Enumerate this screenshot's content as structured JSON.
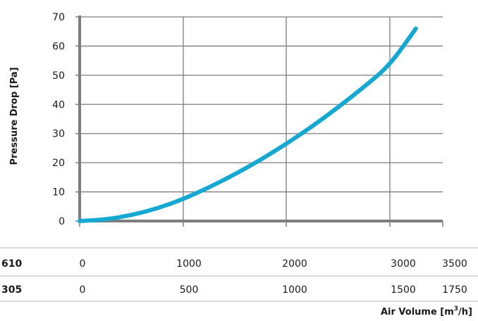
{
  "chart_data": {
    "type": "line",
    "title": "",
    "xlabel": "Air Volume [m³/h]",
    "ylabel": "Pressure Drop [Pa]",
    "ylim": [
      0,
      70
    ],
    "xlim": [
      0,
      3500
    ],
    "yticks": [
      "0",
      "10",
      "20",
      "30",
      "40",
      "50",
      "60",
      "70"
    ],
    "grid": true,
    "legend": "none",
    "line_color": "#14a8d2",
    "x_scales": [
      {
        "label": "610",
        "ticks": [
          "0",
          "1000",
          "2000",
          "3000",
          "3500"
        ]
      },
      {
        "label": "305",
        "ticks": [
          "0",
          "500",
          "1000",
          "1500",
          "1750"
        ]
      }
    ],
    "series": [
      {
        "x": [
          0,
          250,
          500,
          750,
          1000,
          1250,
          1500,
          1750,
          2000,
          2250,
          2500,
          2750,
          3000,
          3250
        ],
        "y": [
          0,
          0.5,
          2,
          4.3,
          7.5,
          11.5,
          16,
          21,
          26.5,
          32.5,
          39,
          46,
          53.5,
          66
        ]
      }
    ]
  }
}
